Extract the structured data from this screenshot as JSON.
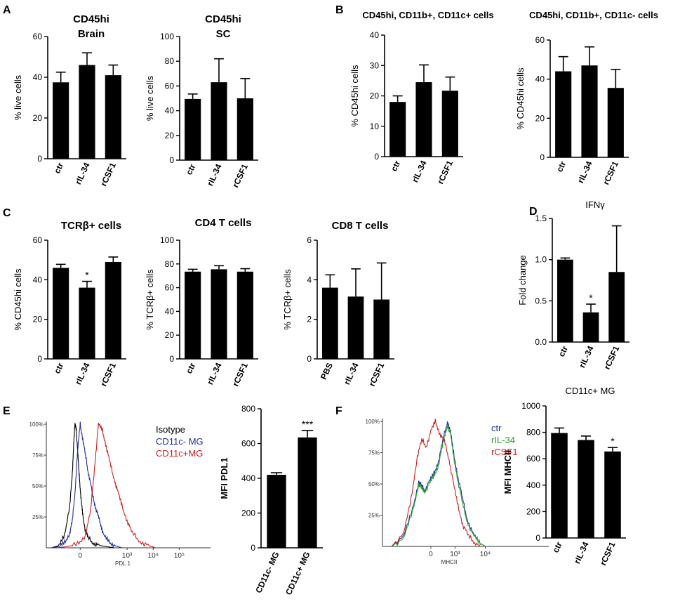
{
  "colors": {
    "bar": "#000000",
    "isotype": "#000000",
    "blue": "#1f2fa0",
    "red": "#cc1f1f",
    "green": "#2aa02a"
  },
  "panel_labels": [
    "A",
    "B",
    "C",
    "D",
    "E",
    "F"
  ],
  "chart_data": [
    {
      "id": "A1",
      "type": "bar",
      "title": "CD45hi",
      "subtitle": "Brain",
      "ylabel": "% live cells",
      "categories": [
        "ctr",
        "rIL-34",
        "rCSF1"
      ],
      "values": [
        37.5,
        46,
        41
      ],
      "errors": [
        5,
        6,
        5
      ],
      "ylim": [
        0,
        60
      ],
      "yticks": [
        "0",
        "20",
        "40",
        "60"
      ],
      "annotations": [
        "",
        "",
        ""
      ]
    },
    {
      "id": "A2",
      "type": "bar",
      "title": "CD45hi",
      "subtitle": "SC",
      "ylabel": "% live cells",
      "categories": [
        "ctr",
        "rIL-34",
        "rCSF1"
      ],
      "values": [
        49.5,
        63,
        50
      ],
      "errors": [
        4,
        19,
        16
      ],
      "ylim": [
        0,
        100
      ],
      "yticks": [
        "0",
        "20",
        "40",
        "60",
        "80",
        "100"
      ],
      "annotations": [
        "",
        "",
        ""
      ]
    },
    {
      "id": "B1",
      "type": "bar",
      "title": "CD45hi, CD11b+, CD11c+ cells",
      "subtitle": "",
      "ylabel": "% CD45hi cells",
      "categories": [
        "ctr",
        "rIL-34",
        "rCSF1"
      ],
      "values": [
        18,
        24.5,
        21.7
      ],
      "errors": [
        2,
        5.7,
        4.5
      ],
      "ylim": [
        0,
        40
      ],
      "yticks": [
        "0",
        "10",
        "20",
        "30",
        "40"
      ],
      "annotations": [
        "",
        "",
        ""
      ]
    },
    {
      "id": "B2",
      "type": "bar",
      "title": "CD45hi, CD11b+, CD11c- cells",
      "subtitle": "",
      "ylabel": "% CD45hi cells",
      "categories": [
        "ctr",
        "rIL-34",
        "rCSF1"
      ],
      "values": [
        44,
        47,
        35.5
      ],
      "errors": [
        7.5,
        9.5,
        9.5
      ],
      "ylim": [
        0,
        60
      ],
      "yticks": [
        "0",
        "20",
        "40",
        "60"
      ],
      "annotations": [
        "",
        "",
        ""
      ]
    },
    {
      "id": "C1",
      "type": "bar",
      "title": "TCRβ+  cells",
      "subtitle": "",
      "ylabel": "% CD45hi cells",
      "categories": [
        "ctr",
        "rIL-34",
        "rCSF1"
      ],
      "values": [
        46,
        36,
        49
      ],
      "errors": [
        1.8,
        3.2,
        2.5
      ],
      "ylim": [
        0,
        60
      ],
      "yticks": [
        "0",
        "20",
        "40",
        "60"
      ],
      "annotations": [
        "",
        "*",
        ""
      ]
    },
    {
      "id": "C2",
      "type": "bar",
      "title": "CD4 T cells",
      "subtitle": "",
      "ylabel": "%  TCRβ+  cells",
      "categories": [
        "ctr",
        "rIL-34",
        "rCSF1"
      ],
      "values": [
        73.5,
        75.5,
        73.5
      ],
      "errors": [
        2,
        3,
        2.5
      ],
      "ylim": [
        0,
        100
      ],
      "yticks": [
        "0",
        "20",
        "40",
        "60",
        "80",
        "100"
      ],
      "annotations": [
        "",
        "",
        ""
      ]
    },
    {
      "id": "C3",
      "type": "bar",
      "title": "CD8 T cells",
      "subtitle": "",
      "ylabel": "% TCRβ+  cells",
      "categories": [
        "PBS",
        "rIL-34",
        "rCSF1"
      ],
      "values": [
        3.6,
        3.15,
        3.0
      ],
      "errors": [
        0.65,
        1.4,
        1.85
      ],
      "ylim": [
        0,
        6
      ],
      "yticks": [
        "0",
        "2",
        "4",
        "6"
      ],
      "annotations": [
        "",
        "",
        ""
      ]
    },
    {
      "id": "D1",
      "type": "bar",
      "title": "IFNγ",
      "subtitle": "",
      "ylabel": "Fold change",
      "categories": [
        "ctr",
        "rIL-34",
        "rCSF1"
      ],
      "values": [
        1.0,
        0.36,
        0.85
      ],
      "errors": [
        0.02,
        0.1,
        0.56
      ],
      "ylim": [
        0,
        1.5
      ],
      "yticks": [
        "0.0",
        "0.5",
        "1.0",
        "1.5"
      ],
      "annotations": [
        "",
        "*",
        ""
      ]
    },
    {
      "id": "E2",
      "type": "bar",
      "title": "",
      "subtitle": "",
      "ylabel": "MFI PDL1",
      "categories": [
        "CD11c- MG",
        "CD11c+ MG"
      ],
      "values": [
        420,
        635
      ],
      "errors": [
        12,
        40
      ],
      "ylim": [
        0,
        800
      ],
      "yticks": [
        "0",
        "200",
        "400",
        "600",
        "800"
      ],
      "annotations": [
        "",
        "***"
      ]
    },
    {
      "id": "F2",
      "type": "bar",
      "title": "CD11c+ MG",
      "subtitle": "",
      "ylabel": "MFI MHCII",
      "categories": [
        "ctr",
        "rIL-34",
        "rCSF1"
      ],
      "values": [
        795,
        742,
        655
      ],
      "errors": [
        38,
        30,
        30
      ],
      "ylim": [
        0,
        1000
      ],
      "yticks": [
        "0",
        "200",
        "400",
        "600",
        "800",
        "1000"
      ],
      "annotations": [
        "",
        "",
        "*"
      ]
    },
    {
      "id": "E1",
      "type": "line",
      "title": "",
      "xlabel": "PDL 1",
      "yticks": [
        "100%",
        "75%",
        "50%",
        "25%"
      ],
      "xticks": [
        "0",
        "10³",
        "10⁴",
        "10⁵"
      ],
      "legend": [
        "Isotype",
        "CD11c- MG",
        "CD11c+MG"
      ],
      "series": [
        {
          "name": "Isotype",
          "color": "#000000",
          "x": [
            -0.8,
            -0.5,
            -0.3,
            -0.1,
            0,
            0.05,
            0.1,
            0.15,
            0.2,
            0.25,
            0.3,
            0.35,
            0.4,
            0.5,
            0.6,
            0.8,
            1.0,
            1.3,
            1.6
          ],
          "y": [
            0,
            2,
            10,
            35,
            60,
            85,
            100,
            95,
            80,
            62,
            48,
            36,
            26,
            14,
            8,
            4,
            2,
            1,
            0
          ]
        },
        {
          "name": "CD11c- MG",
          "color": "#1f2fa0",
          "x": [
            -0.8,
            -0.5,
            -0.3,
            -0.1,
            0,
            0.1,
            0.2,
            0.3,
            0.4,
            0.5,
            0.6,
            0.7,
            0.8,
            0.9,
            1.0,
            1.1,
            1.2,
            1.4,
            1.6,
            1.9
          ],
          "y": [
            0,
            1,
            4,
            12,
            22,
            45,
            78,
            100,
            88,
            75,
            62,
            52,
            40,
            32,
            25,
            18,
            10,
            5,
            2,
            0
          ]
        },
        {
          "name": "CD11c+MG",
          "color": "#cc1f1f",
          "x": [
            -0.6,
            -0.2,
            0.2,
            0.5,
            0.7,
            0.85,
            1.0,
            1.15,
            1.3,
            1.45,
            1.6,
            1.75,
            1.9,
            2.1,
            2.3,
            2.6,
            2.9,
            3.2
          ],
          "y": [
            0,
            1,
            3,
            10,
            30,
            65,
            100,
            95,
            82,
            68,
            56,
            45,
            34,
            22,
            12,
            5,
            2,
            0
          ]
        }
      ]
    },
    {
      "id": "F1",
      "type": "line",
      "title": "",
      "xlabel": "MHCII",
      "yticks": [
        "100%",
        "75%",
        "50%",
        "25%"
      ],
      "xticks": [
        "0",
        "10³",
        "10⁴"
      ],
      "legend": [
        "ctr",
        "rIL-34",
        "rCSF1"
      ],
      "series": [
        {
          "name": "ctr",
          "color": "#1f2fa0",
          "x": [
            -1.0,
            -0.6,
            -0.3,
            -0.1,
            0,
            0.1,
            0.25,
            0.4,
            0.55,
            0.7,
            0.85,
            0.95,
            1.05,
            1.2,
            1.35,
            1.5,
            1.7,
            1.9,
            2.1
          ],
          "y": [
            0,
            8,
            30,
            52,
            48,
            45,
            52,
            58,
            68,
            85,
            100,
            92,
            75,
            55,
            38,
            22,
            10,
            3,
            0
          ]
        },
        {
          "name": "rIL-34",
          "color": "#2aa02a",
          "x": [
            -1.0,
            -0.6,
            -0.3,
            -0.1,
            0,
            0.1,
            0.25,
            0.4,
            0.55,
            0.7,
            0.85,
            0.95,
            1.05,
            1.2,
            1.35,
            1.5,
            1.7,
            1.9,
            2.1
          ],
          "y": [
            0,
            6,
            28,
            50,
            46,
            44,
            50,
            56,
            65,
            82,
            97,
            90,
            72,
            52,
            34,
            20,
            9,
            3,
            0
          ]
        },
        {
          "name": "rCSF1",
          "color": "#cc1f1f",
          "x": [
            -1.0,
            -0.6,
            -0.35,
            -0.15,
            0,
            0.15,
            0.3,
            0.45,
            0.6,
            0.75,
            0.9,
            1.05,
            1.2,
            1.35,
            1.55,
            1.75,
            1.95
          ],
          "y": [
            0,
            10,
            38,
            72,
            85,
            80,
            92,
            100,
            90,
            84,
            70,
            50,
            32,
            18,
            8,
            3,
            0
          ]
        }
      ]
    }
  ]
}
